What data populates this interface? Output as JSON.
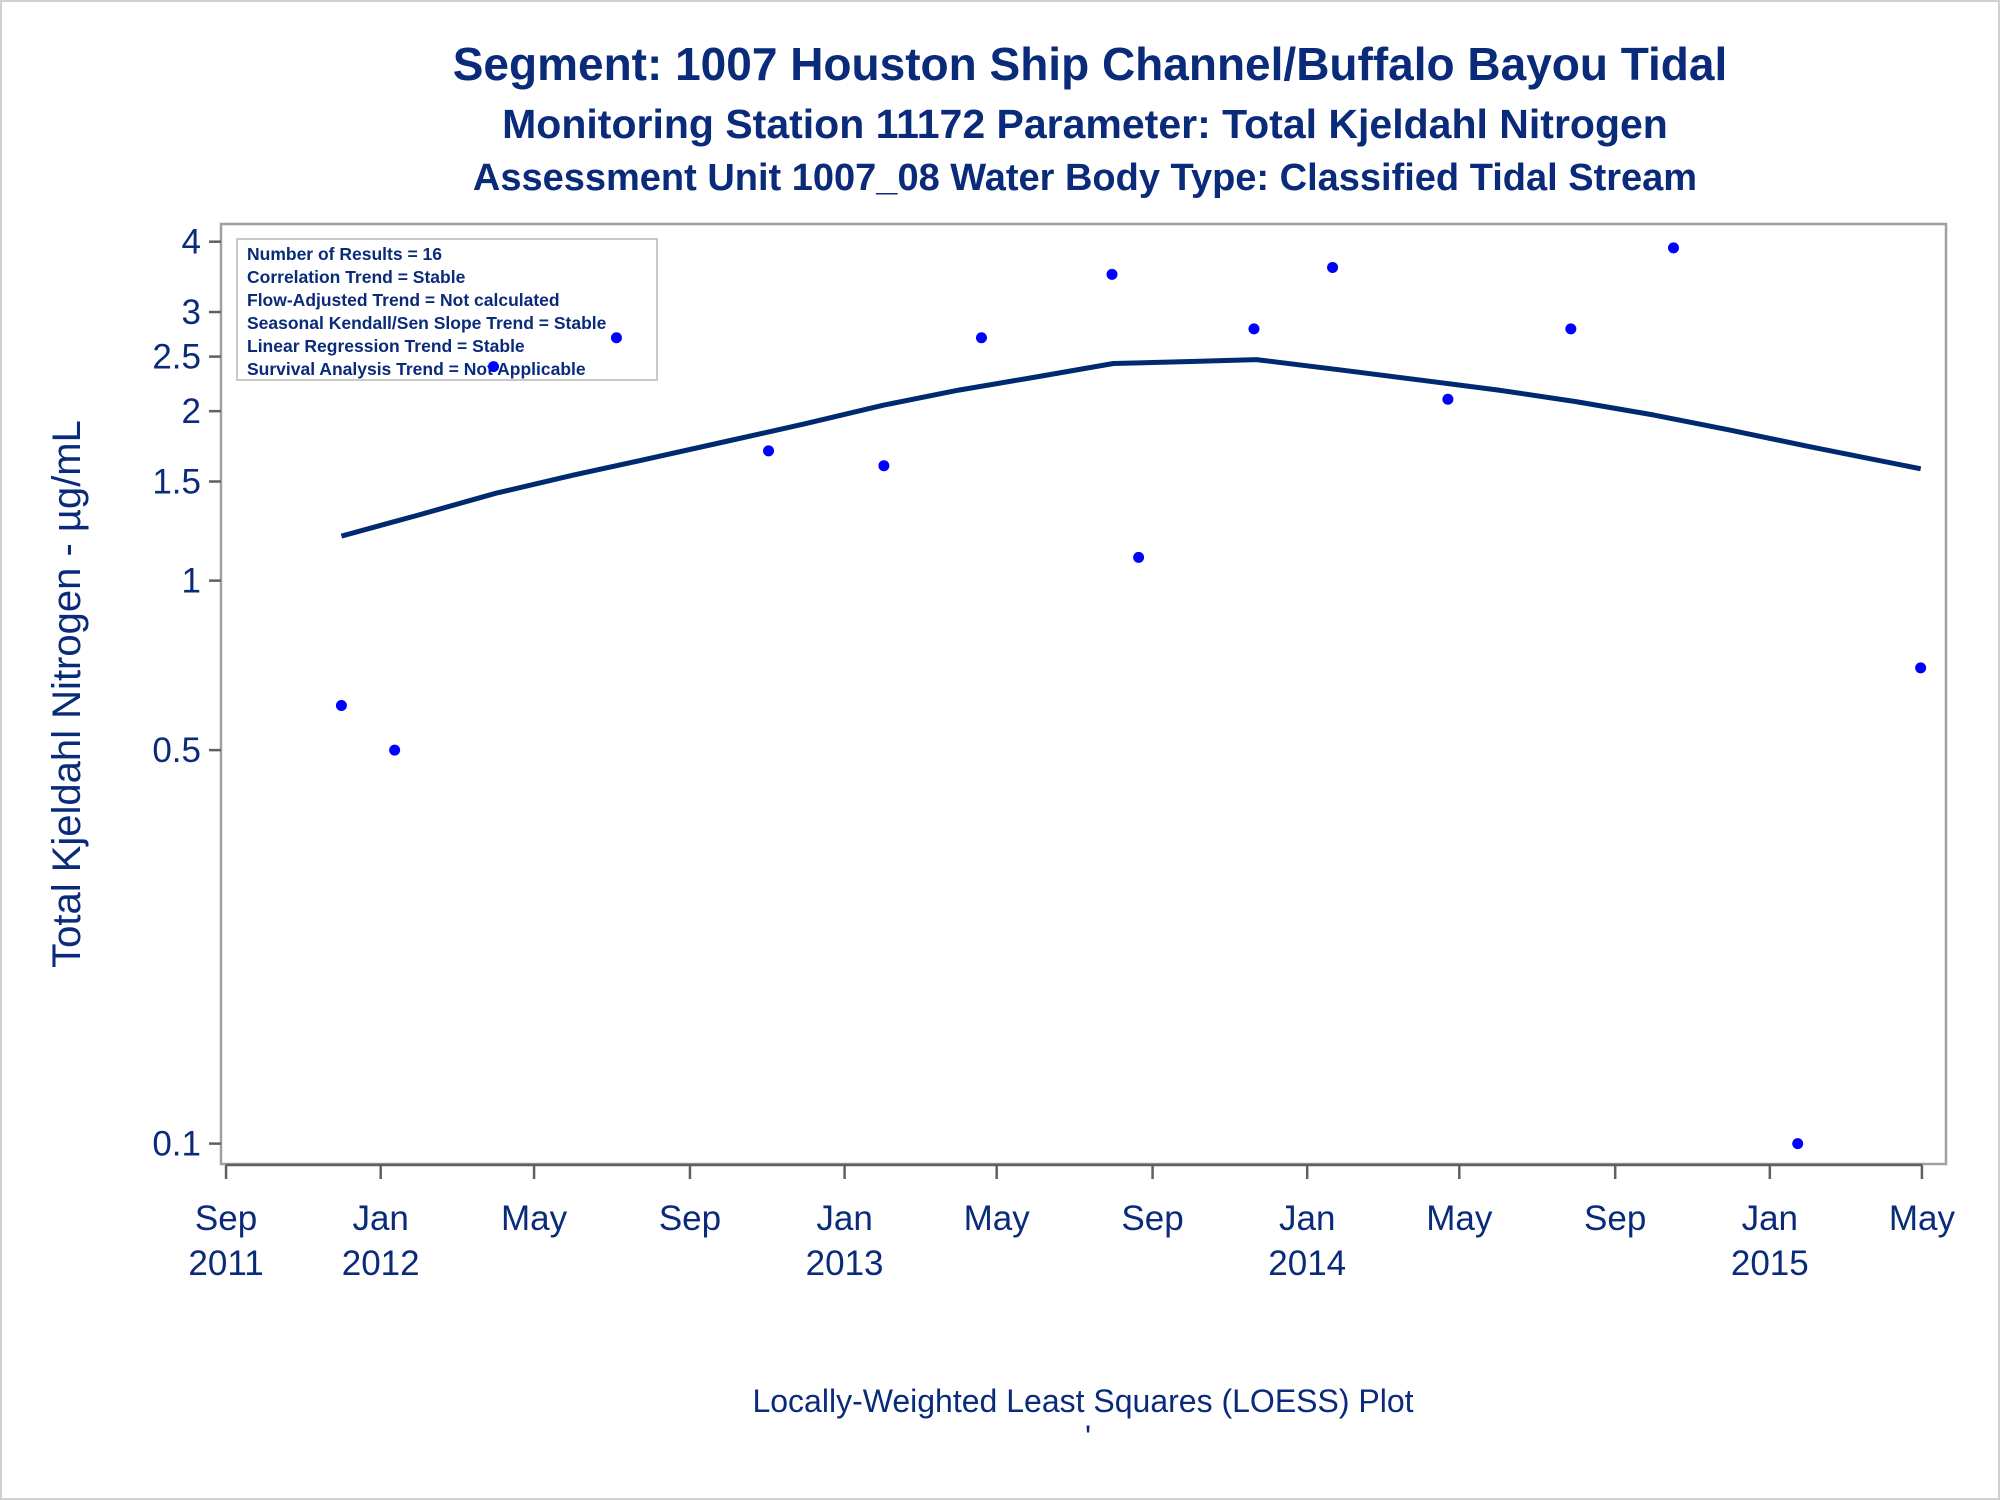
{
  "chart_data": {
    "type": "scatter",
    "title": "Segment: 1007  Houston Ship Channel/Buffalo Bayou Tidal",
    "subtitle": "Monitoring Station 11172 Parameter: Total Kjeldahl Nitrogen",
    "subtitle2": "Assessment Unit 1007_08   Water Body Type: Classified Tidal Stream",
    "ylabel": "Total Kjeldahl Nitrogen -  µg/mL",
    "footnote": "Locally-Weighted Least Squares (LOESS) Plot",
    "footnote_mark": "'",
    "yscale": "log",
    "ylim": [
      0.092,
      4.3
    ],
    "xlim": [
      "2011-08-28",
      "2015-05-20"
    ],
    "x_ticks": [
      {
        "date": "2011-09-01",
        "line1": "Sep",
        "line2": "2011"
      },
      {
        "date": "2012-01-01",
        "line1": "Jan",
        "line2": "2012"
      },
      {
        "date": "2012-05-01",
        "line1": "May",
        "line2": ""
      },
      {
        "date": "2012-09-01",
        "line1": "Sep",
        "line2": ""
      },
      {
        "date": "2013-01-01",
        "line1": "Jan",
        "line2": "2013"
      },
      {
        "date": "2013-05-01",
        "line1": "May",
        "line2": ""
      },
      {
        "date": "2013-09-01",
        "line1": "Sep",
        "line2": ""
      },
      {
        "date": "2014-01-01",
        "line1": "Jan",
        "line2": "2014"
      },
      {
        "date": "2014-05-01",
        "line1": "May",
        "line2": ""
      },
      {
        "date": "2014-09-01",
        "line1": "Sep",
        "line2": ""
      },
      {
        "date": "2015-01-01",
        "line1": "Jan",
        "line2": "2015"
      },
      {
        "date": "2015-05-01",
        "line1": "May",
        "line2": ""
      }
    ],
    "y_ticks": [
      {
        "value": 0.1,
        "label": "0.1"
      },
      {
        "value": 0.5,
        "label": "0.5"
      },
      {
        "value": 1,
        "label": "1"
      },
      {
        "value": 1.5,
        "label": "1.5"
      },
      {
        "value": 2,
        "label": "2"
      },
      {
        "value": 2.5,
        "label": "2.5"
      },
      {
        "value": 3,
        "label": "3"
      },
      {
        "value": 4,
        "label": "4"
      }
    ],
    "series": [
      {
        "kind": "points",
        "color": "#0000ff",
        "points": [
          {
            "x": "2011-12-01",
            "y": 0.6
          },
          {
            "x": "2012-01-12",
            "y": 0.5
          },
          {
            "x": "2012-03-30",
            "y": 2.4
          },
          {
            "x": "2012-07-05",
            "y": 2.7
          },
          {
            "x": "2012-11-02",
            "y": 1.7
          },
          {
            "x": "2013-02-01",
            "y": 1.6
          },
          {
            "x": "2013-04-19",
            "y": 2.7
          },
          {
            "x": "2013-07-31",
            "y": 3.5
          },
          {
            "x": "2013-08-21",
            "y": 1.1
          },
          {
            "x": "2013-11-20",
            "y": 2.8
          },
          {
            "x": "2014-01-21",
            "y": 3.6
          },
          {
            "x": "2014-04-22",
            "y": 2.1
          },
          {
            "x": "2014-07-28",
            "y": 2.8
          },
          {
            "x": "2014-10-17",
            "y": 3.9
          },
          {
            "x": "2015-01-23",
            "y": 0.1
          },
          {
            "x": "2015-04-30",
            "y": 0.7
          }
        ]
      },
      {
        "kind": "loess",
        "color": "#002a70",
        "points": [
          {
            "x": "2011-12-01",
            "y": 1.2
          },
          {
            "x": "2012-02-01",
            "y": 1.31
          },
          {
            "x": "2012-04-01",
            "y": 1.43
          },
          {
            "x": "2012-06-01",
            "y": 1.54
          },
          {
            "x": "2012-08-01",
            "y": 1.65
          },
          {
            "x": "2012-10-01",
            "y": 1.77
          },
          {
            "x": "2012-12-01",
            "y": 1.9
          },
          {
            "x": "2013-02-01",
            "y": 2.05
          },
          {
            "x": "2013-04-01",
            "y": 2.18
          },
          {
            "x": "2013-06-01",
            "y": 2.3
          },
          {
            "x": "2013-08-01",
            "y": 2.43
          },
          {
            "x": "2013-10-01",
            "y": 2.45
          },
          {
            "x": "2013-11-22",
            "y": 2.47
          },
          {
            "x": "2014-02-01",
            "y": 2.36
          },
          {
            "x": "2014-04-01",
            "y": 2.27
          },
          {
            "x": "2014-06-01",
            "y": 2.18
          },
          {
            "x": "2014-08-01",
            "y": 2.08
          },
          {
            "x": "2014-10-01",
            "y": 1.97
          },
          {
            "x": "2014-12-01",
            "y": 1.85
          },
          {
            "x": "2015-02-01",
            "y": 1.73
          },
          {
            "x": "2015-04-30",
            "y": 1.58
          }
        ]
      }
    ],
    "legend_box": {
      "placement": "top-left",
      "lines": [
        "Number of Results = 16",
        "Correlation Trend = Stable",
        "Flow-Adjusted Trend = Not calculated",
        "Seasonal Kendall/Sen Slope Trend = Stable",
        "Linear Regression Trend = Stable",
        "Survival Analysis Trend = Not Applicable"
      ]
    },
    "colors": {
      "text": "#0a2a7a",
      "frame": "#a0a0a0",
      "axis": "#606060"
    }
  }
}
